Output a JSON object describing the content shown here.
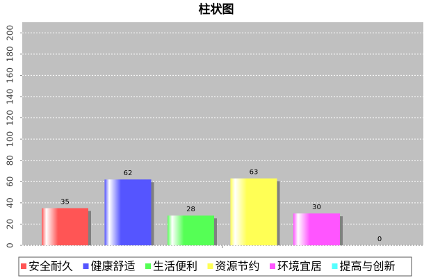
{
  "chart_data": {
    "type": "bar",
    "title": "柱状图",
    "categories": [
      null
    ],
    "series": [
      {
        "name": "安全耐久",
        "color": "#ff5555",
        "values": [
          35
        ]
      },
      {
        "name": "健康舒适",
        "color": "#5555ff",
        "values": [
          62
        ]
      },
      {
        "name": "生活便利",
        "color": "#55ff55",
        "values": [
          28
        ]
      },
      {
        "name": "资源节约",
        "color": "#ffff55",
        "values": [
          63
        ]
      },
      {
        "name": "环境宜居",
        "color": "#ff55ff",
        "values": [
          30
        ]
      },
      {
        "name": "提高与创新",
        "color": "#55ffff",
        "values": [
          0
        ]
      }
    ],
    "ylim": [
      0,
      210
    ],
    "yticks": [
      0,
      20,
      40,
      60,
      80,
      100,
      120,
      140,
      160,
      180,
      200
    ],
    "grid": true,
    "legend": "bottom"
  }
}
